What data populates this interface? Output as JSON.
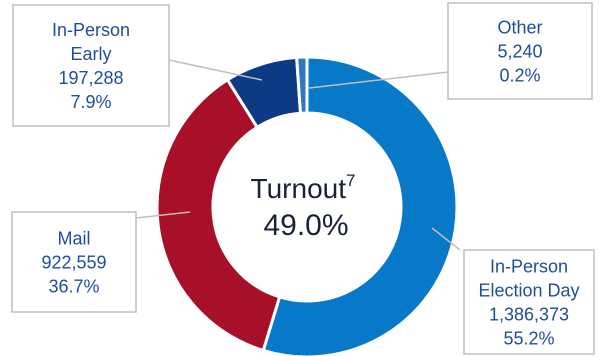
{
  "chart_data": {
    "type": "pie",
    "variant": "donut",
    "center": {
      "label": "Turnout",
      "footnote": "7",
      "value": "49.0%"
    },
    "slices": [
      {
        "name": "In-Person Election Day",
        "label_lines": [
          "In-Person",
          "Election Day"
        ],
        "value": 1386373,
        "value_label": "1,386,373",
        "percent": 55.2,
        "percent_label": "55.2%",
        "color": "#0878C8"
      },
      {
        "name": "Mail",
        "label_lines": [
          "Mail"
        ],
        "value": 922559,
        "value_label": "922,559",
        "percent": 36.7,
        "percent_label": "36.7%",
        "color": "#A8102A"
      },
      {
        "name": "In-Person Early",
        "label_lines": [
          "In-Person",
          "Early"
        ],
        "value": 197288,
        "value_label": "197,288",
        "percent": 7.9,
        "percent_label": "7.9%",
        "color": "#0C3B84"
      },
      {
        "name": "Other",
        "label_lines": [
          "Other"
        ],
        "value": 5240,
        "value_label": "5,240",
        "percent": 0.2,
        "percent_label": "0.2%",
        "color": "#2E78C0"
      }
    ],
    "colors": {
      "callout_text": "#1F4E9C",
      "callout_border": "#BFBFBF",
      "leader_line": "#BFBFBF",
      "center_text": "#1A2238"
    }
  }
}
